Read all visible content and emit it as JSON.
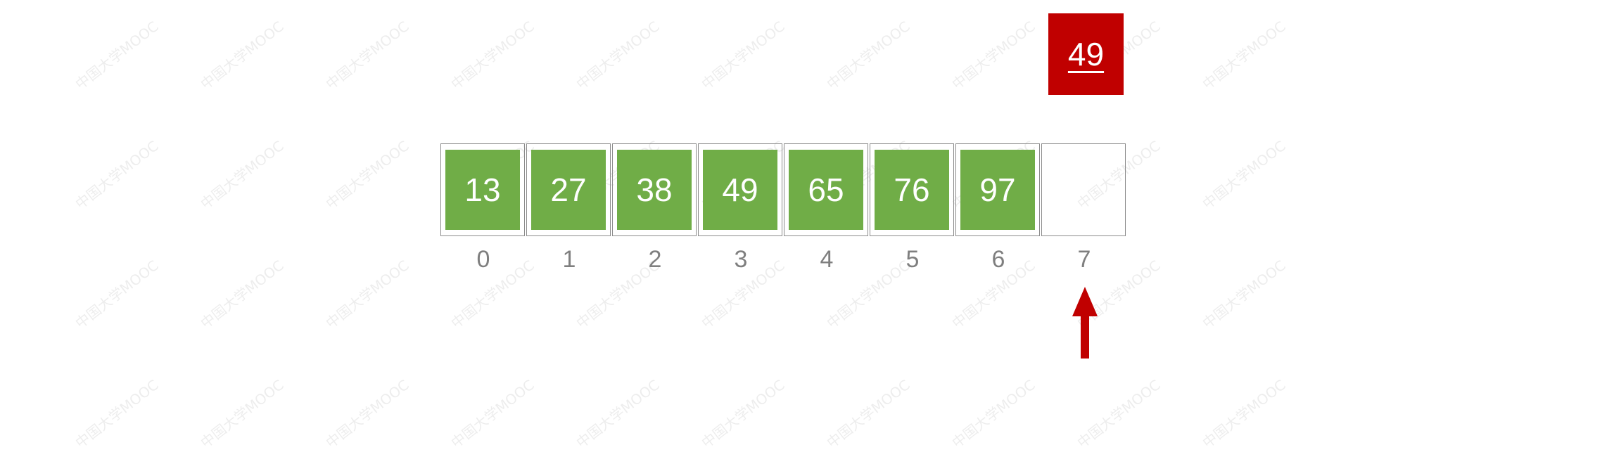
{
  "watermark": "中国大学MOOC",
  "array": {
    "cells": [
      "13",
      "27",
      "38",
      "49",
      "65",
      "76",
      "97",
      ""
    ],
    "indices": [
      "0",
      "1",
      "2",
      "3",
      "4",
      "5",
      "6",
      "7"
    ]
  },
  "key": {
    "value": "49",
    "underlined": true
  },
  "pointer": {
    "target_index": 7
  },
  "colors": {
    "cell_fill": "#70ad47",
    "key_fill": "#c00000",
    "arrow": "#c00000",
    "index_text": "#7f7f7f",
    "slot_border": "#8a8a8a"
  }
}
